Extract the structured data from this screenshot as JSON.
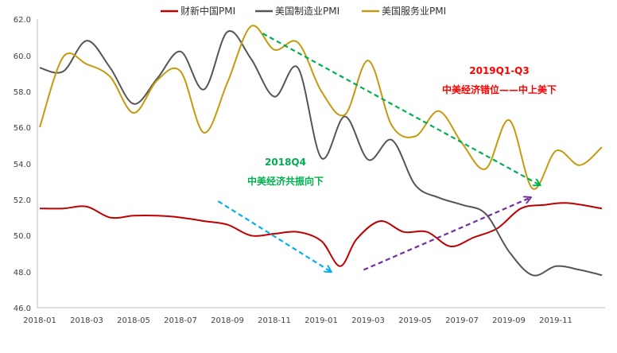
{
  "chart_data": {
    "type": "line",
    "title": "",
    "xlabel": "",
    "ylabel": "",
    "ylim": [
      46.0,
      62.0
    ],
    "yticks": [
      "46.0",
      "48.0",
      "50.0",
      "52.0",
      "54.0",
      "56.0",
      "58.0",
      "60.0",
      "62.0"
    ],
    "xlim": [
      0,
      23.95
    ],
    "xticks": [
      "2018-01",
      "2018-03",
      "2018-05",
      "2018-07",
      "2018-09",
      "2018-11",
      "2019-01",
      "2019-03",
      "2019-05",
      "2019-07",
      "2019-09",
      "2019-11"
    ],
    "grid": false,
    "legend_position": "top-center",
    "series": [
      {
        "name": "财新中国PMI",
        "color": "#c00000",
        "points": [
          [
            0,
            51.5
          ],
          [
            1,
            51.5
          ],
          [
            2,
            51.6
          ],
          [
            3,
            51.0
          ],
          [
            4,
            51.1
          ],
          [
            5,
            51.1
          ],
          [
            6,
            51.0
          ],
          [
            7,
            50.8
          ],
          [
            8,
            50.6
          ],
          [
            9,
            50.0
          ],
          [
            10,
            50.1
          ],
          [
            11,
            50.2
          ],
          [
            12,
            49.7
          ],
          [
            12.8,
            48.3
          ],
          [
            13.5,
            49.8
          ],
          [
            14.5,
            50.8
          ],
          [
            15.5,
            50.2
          ],
          [
            16.5,
            50.2
          ],
          [
            17.5,
            49.4
          ],
          [
            18.5,
            49.9
          ],
          [
            19.5,
            50.4
          ],
          [
            20.5,
            51.5
          ],
          [
            21.5,
            51.7
          ],
          [
            22.5,
            51.8
          ],
          [
            23.95,
            51.5
          ]
        ]
      },
      {
        "name": "美国制造业PMI",
        "color": "#555555",
        "points": [
          [
            0,
            59.3
          ],
          [
            1,
            59.1
          ],
          [
            2,
            60.8
          ],
          [
            3,
            59.3
          ],
          [
            4,
            57.3
          ],
          [
            5,
            58.7
          ],
          [
            6,
            60.2
          ],
          [
            7,
            58.1
          ],
          [
            8,
            61.3
          ],
          [
            9,
            59.8
          ],
          [
            10,
            57.7
          ],
          [
            11,
            59.3
          ],
          [
            12,
            54.3
          ],
          [
            13,
            56.6
          ],
          [
            14,
            54.2
          ],
          [
            15,
            55.3
          ],
          [
            16,
            52.8
          ],
          [
            17,
            52.1
          ],
          [
            18,
            51.7
          ],
          [
            19,
            51.2
          ],
          [
            20,
            49.1
          ],
          [
            21,
            47.8
          ],
          [
            22,
            48.3
          ],
          [
            23,
            48.1
          ],
          [
            23.95,
            47.8
          ]
        ]
      },
      {
        "name": "美国服务业PMI",
        "color": "#c49a0f",
        "points": [
          [
            0,
            56.0
          ],
          [
            1,
            59.9
          ],
          [
            2,
            59.5
          ],
          [
            3,
            58.8
          ],
          [
            4,
            56.8
          ],
          [
            5,
            58.6
          ],
          [
            6,
            59.1
          ],
          [
            7,
            55.7
          ],
          [
            8,
            58.5
          ],
          [
            9,
            61.6
          ],
          [
            10,
            60.3
          ],
          [
            11,
            60.7
          ],
          [
            12,
            58.0
          ],
          [
            13,
            56.7
          ],
          [
            14,
            59.7
          ],
          [
            15,
            56.1
          ],
          [
            16,
            55.5
          ],
          [
            17,
            56.9
          ],
          [
            18,
            55.1
          ],
          [
            19,
            53.7
          ],
          [
            20,
            56.4
          ],
          [
            21,
            52.6
          ],
          [
            22,
            54.7
          ],
          [
            23,
            53.9
          ],
          [
            23.95,
            54.9
          ]
        ]
      }
    ],
    "annotations": [
      {
        "id": "q4",
        "line1": "2018Q4",
        "line2": "中美经济共振向下",
        "color": "#00b050"
      },
      {
        "id": "q13",
        "line1": "2019Q1-Q3",
        "line2": "中美经济错位——中上美下",
        "color": "#ff0000"
      }
    ],
    "arrows": [
      {
        "name": "green-trend-arrow",
        "color": "#00b050",
        "from": [
          9.5,
          61.2
        ],
        "to": [
          21.3,
          52.8
        ]
      },
      {
        "name": "cyan-trend-arrow",
        "color": "#00b0f0",
        "from": [
          7.6,
          51.9
        ],
        "to": [
          12.4,
          48.0
        ]
      },
      {
        "name": "purple-trend-arrow",
        "color": "#7030a0",
        "from": [
          13.8,
          48.1
        ],
        "to": [
          20.9,
          52.1
        ]
      }
    ]
  }
}
